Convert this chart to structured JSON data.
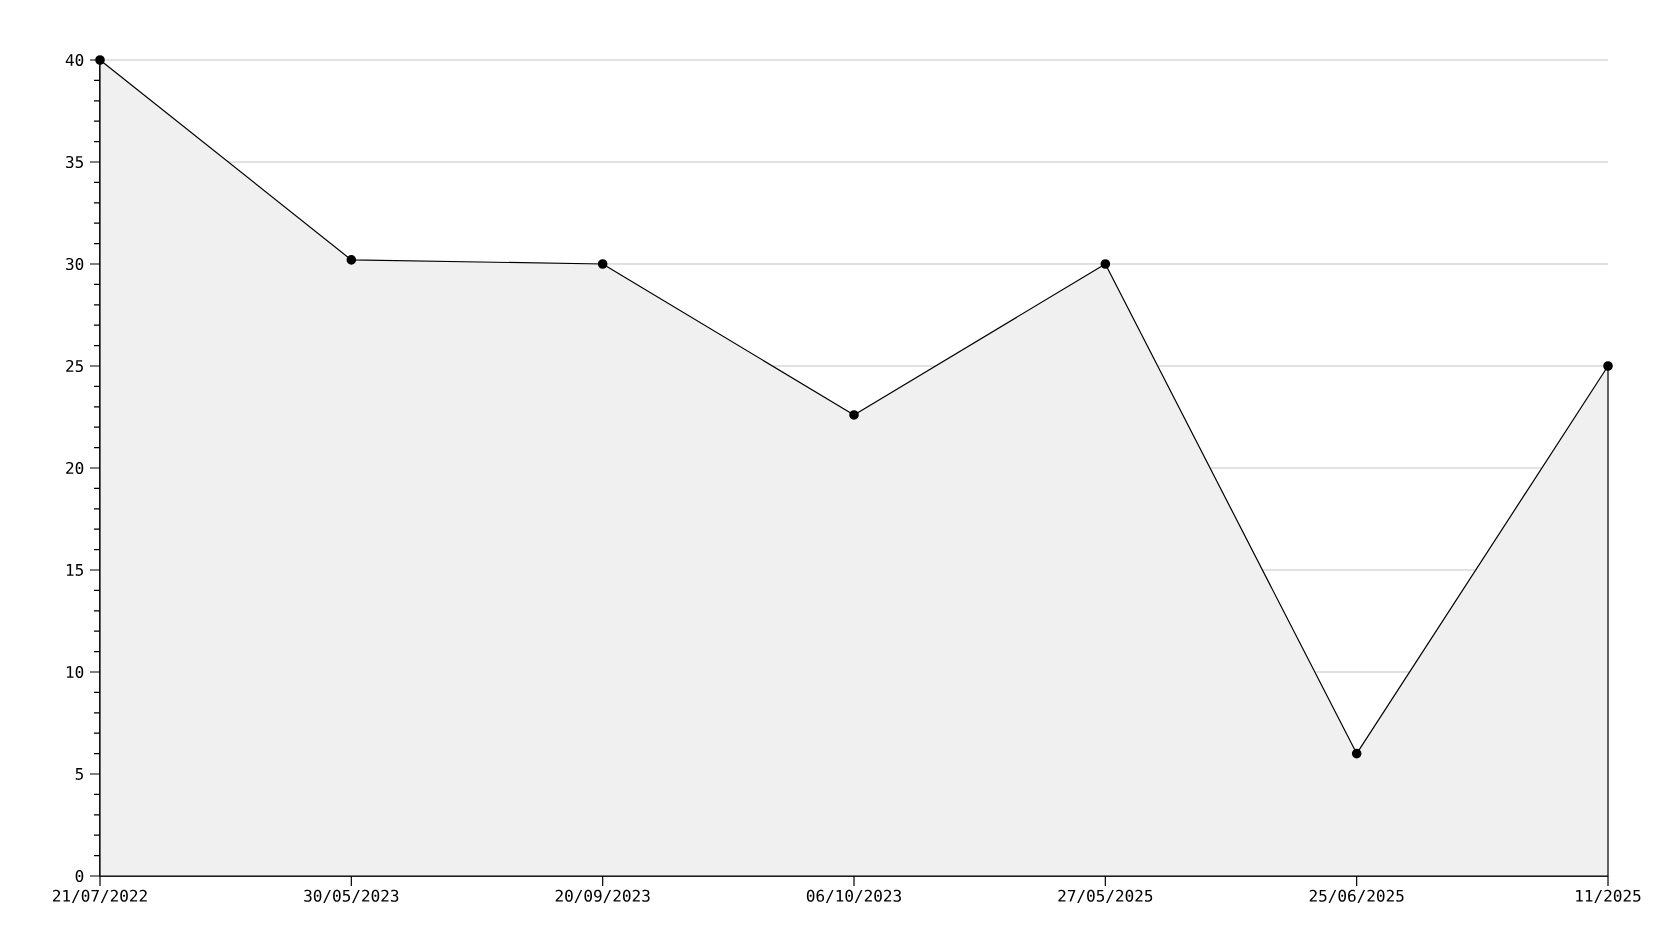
{
  "chart_data": {
    "type": "area",
    "categories": [
      "21/07/2022",
      "30/05/2023",
      "20/09/2023",
      "06/10/2023",
      "27/05/2025",
      "25/06/2025",
      "11/2025"
    ],
    "series": [
      {
        "color": "#000000",
        "values": [
          40,
          30.2,
          30,
          22.6,
          30,
          6,
          25
        ]
      }
    ],
    "ylim": [
      0,
      40
    ],
    "yticks": [
      0,
      5,
      10,
      15,
      20,
      25,
      30,
      35,
      40
    ],
    "grid": "y",
    "marker": "circle",
    "line_style": "solid"
  }
}
